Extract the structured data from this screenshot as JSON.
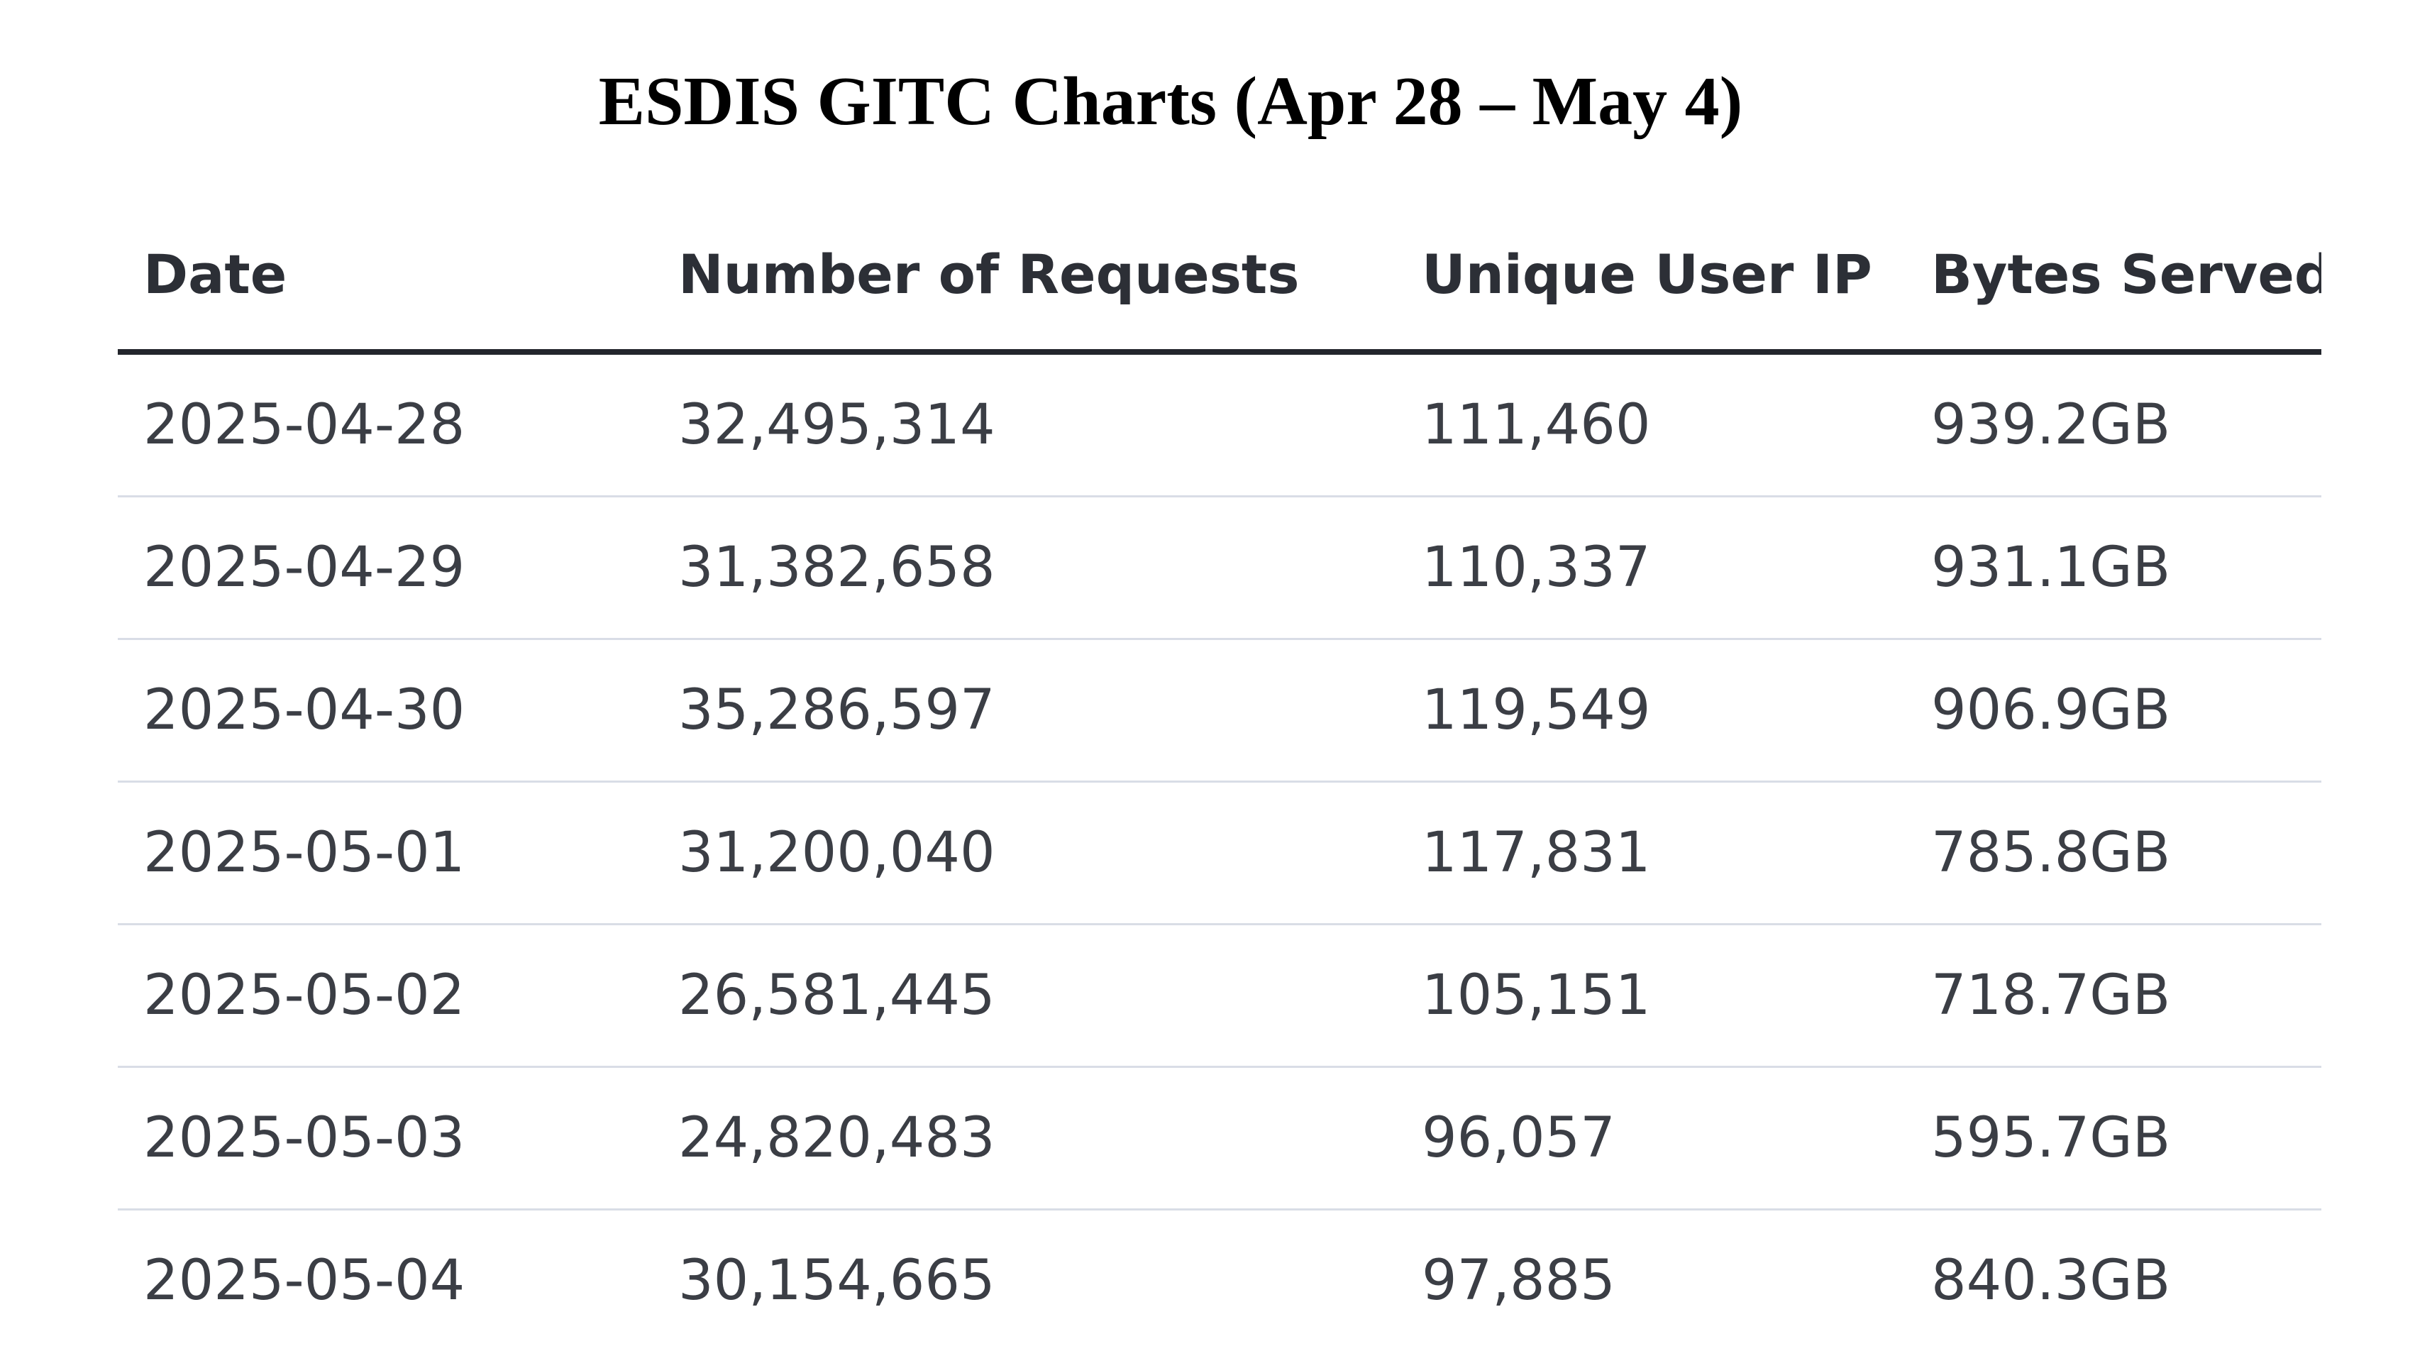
{
  "title": "ESDIS GITC Charts (Apr 28 – May 4)",
  "table": {
    "headers": [
      "Date",
      "Number of Requests",
      "Unique User IP",
      "Bytes Served"
    ],
    "rows": [
      [
        "2025-04-28",
        "32,495,314",
        "111,460",
        "939.2GB"
      ],
      [
        "2025-04-29",
        "31,382,658",
        "110,337",
        "931.1GB"
      ],
      [
        "2025-04-30",
        "35,286,597",
        "119,549",
        "906.9GB"
      ],
      [
        "2025-05-01",
        "31,200,040",
        "117,831",
        "785.8GB"
      ],
      [
        "2025-05-02",
        "26,581,445",
        "105,151",
        "718.7GB"
      ],
      [
        "2025-05-03",
        "24,820,483",
        "96,057",
        "595.7GB"
      ],
      [
        "2025-05-04",
        "30,154,665",
        "97,885",
        "840.3GB"
      ]
    ]
  }
}
